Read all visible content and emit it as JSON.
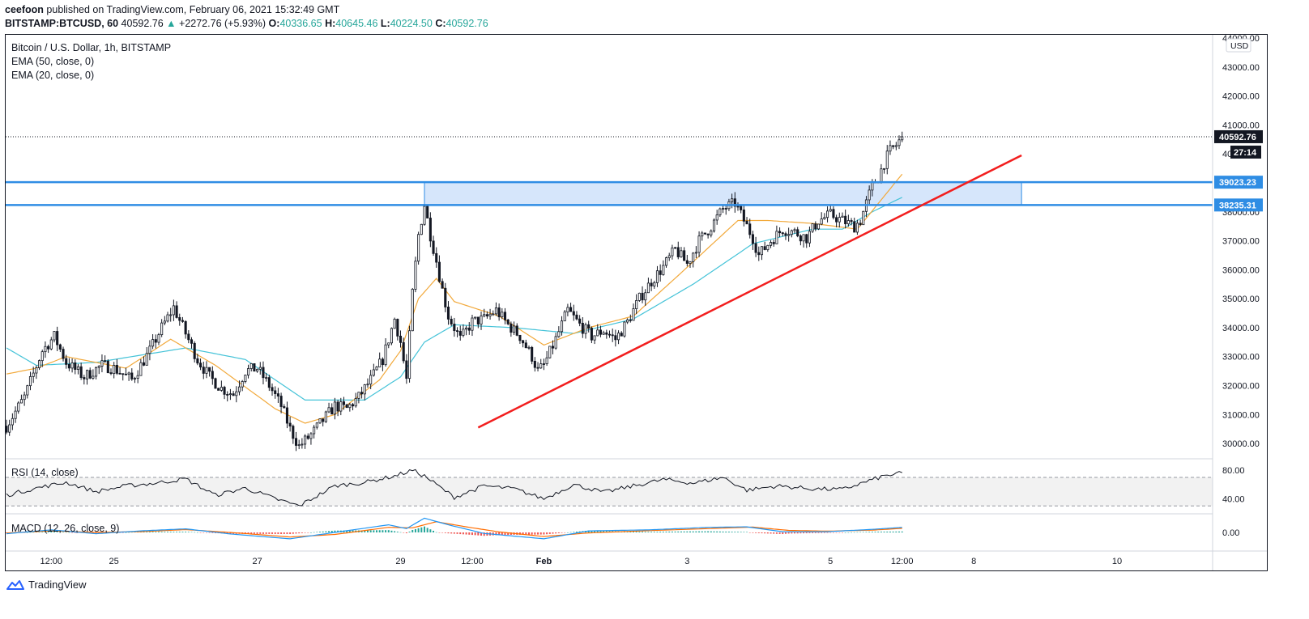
{
  "header": {
    "publisher": "ceefoon",
    "published_text": "published on TradingView.com, February 06, 2021 15:32:49 GMT"
  },
  "ohlc_bar": {
    "symbol": "BITSTAMP:BTCUSD, 60",
    "price": "40592.76",
    "change_arrow": "▲",
    "change": "+2272.76 (+5.93%)",
    "o_label": "O:",
    "o": "40336.65",
    "h_label": "H:",
    "h": "40645.46",
    "l_label": "L:",
    "l": "40224.50",
    "c_label": "C:",
    "c": "40592.76"
  },
  "legend": {
    "title": "Bitcoin / U.S. Dollar, 1h, BITSTAMP",
    "ema50": "EMA (50, close, 0)",
    "ema20": "EMA (20, close, 0)",
    "rsi": "RSI (14, close)",
    "macd": "MACD (12, 26, close, 9)"
  },
  "footer": {
    "brand": "TradingView",
    "logo_icon": "tradingview-logo-icon"
  },
  "colors": {
    "candle": "#131722",
    "ema50": "#45c3d8",
    "ema20": "#f2a93b",
    "trendline": "#f21e1e",
    "level": "#2f8de4",
    "zone": "#d6e6fb",
    "rsi": "#131722",
    "macd": "#2196f3",
    "signal": "#ff6d00",
    "hist_up": "#26a69a",
    "hist_down": "#ef5350"
  },
  "chart_data": [
    {
      "type": "candlestick",
      "title": "Bitcoin / U.S. Dollar, 1h, BITSTAMP",
      "y_axis_unit": "USD",
      "ylim": [
        29500,
        44000
      ],
      "y_ticks": [
        30000,
        31000,
        32000,
        33000,
        34000,
        35000,
        36000,
        37000,
        38000,
        39000,
        40000,
        41000,
        42000,
        43000,
        44000
      ],
      "y_tick_labels": [
        "30000.00",
        "31000.00",
        "32000.00",
        "33000.00",
        "34000.00",
        "35000.00",
        "36000.00",
        "37000.00",
        "38000.00",
        "39000.00",
        "40000.00",
        "41000.00",
        "42000.00",
        "43000.00",
        "44000.00"
      ],
      "x_tick_labels": [
        "12:00",
        "25",
        "27",
        "29",
        "12:00",
        "Feb",
        "3",
        "5",
        "12:00",
        "8",
        "10"
      ],
      "x_tick_index": [
        15,
        36,
        84,
        132,
        156,
        180,
        228,
        276,
        300,
        324,
        372
      ],
      "close_path": [
        [
          0,
          30600
        ],
        [
          6,
          31600
        ],
        [
          12,
          33200
        ],
        [
          16,
          33700
        ],
        [
          20,
          32800
        ],
        [
          26,
          32300
        ],
        [
          32,
          32700
        ],
        [
          36,
          32600
        ],
        [
          42,
          32200
        ],
        [
          48,
          33200
        ],
        [
          52,
          34000
        ],
        [
          56,
          34700
        ],
        [
          60,
          33800
        ],
        [
          64,
          32900
        ],
        [
          68,
          32300
        ],
        [
          72,
          31900
        ],
        [
          76,
          31700
        ],
        [
          80,
          32500
        ],
        [
          84,
          32600
        ],
        [
          88,
          32000
        ],
        [
          92,
          31300
        ],
        [
          95,
          30500
        ],
        [
          98,
          29900
        ],
        [
          102,
          30300
        ],
        [
          106,
          30800
        ],
        [
          110,
          31300
        ],
        [
          114,
          31200
        ],
        [
          118,
          31600
        ],
        [
          122,
          32200
        ],
        [
          126,
          32900
        ],
        [
          128,
          33600
        ],
        [
          130,
          34300
        ],
        [
          132,
          33500
        ],
        [
          134,
          32200
        ],
        [
          136,
          35200
        ],
        [
          138,
          37200
        ],
        [
          140,
          38250
        ],
        [
          142,
          37200
        ],
        [
          144,
          36300
        ],
        [
          146,
          35300
        ],
        [
          148,
          34400
        ],
        [
          152,
          33600
        ],
        [
          156,
          34200
        ],
        [
          160,
          34300
        ],
        [
          164,
          34600
        ],
        [
          168,
          34100
        ],
        [
          172,
          33700
        ],
        [
          176,
          33000
        ],
        [
          178,
          32500
        ],
        [
          180,
          32700
        ],
        [
          184,
          33600
        ],
        [
          188,
          34600
        ],
        [
          192,
          34100
        ],
        [
          196,
          33700
        ],
        [
          200,
          33900
        ],
        [
          204,
          33600
        ],
        [
          208,
          34200
        ],
        [
          212,
          35000
        ],
        [
          216,
          35600
        ],
        [
          220,
          36100
        ],
        [
          224,
          36700
        ],
        [
          228,
          36200
        ],
        [
          232,
          37000
        ],
        [
          236,
          37500
        ],
        [
          240,
          38100
        ],
        [
          244,
          38300
        ],
        [
          248,
          37500
        ],
        [
          250,
          37100
        ],
        [
          252,
          36500
        ],
        [
          256,
          37000
        ],
        [
          260,
          37400
        ],
        [
          264,
          37300
        ],
        [
          268,
          37100
        ],
        [
          272,
          37700
        ],
        [
          276,
          37900
        ],
        [
          280,
          37700
        ],
        [
          284,
          37500
        ],
        [
          286,
          37700
        ],
        [
          288,
          38300
        ],
        [
          290,
          38900
        ],
        [
          292,
          39200
        ],
        [
          294,
          39700
        ],
        [
          296,
          40100
        ],
        [
          298,
          40300
        ],
        [
          300,
          40593
        ]
      ],
      "series": [
        {
          "name": "EMA (50, close, 0)",
          "path": [
            [
              0,
              33300
            ],
            [
              10,
              32700
            ],
            [
              30,
              32800
            ],
            [
              60,
              33300
            ],
            [
              80,
              32900
            ],
            [
              100,
              31500
            ],
            [
              120,
              31500
            ],
            [
              132,
              32300
            ],
            [
              140,
              33500
            ],
            [
              150,
              34100
            ],
            [
              170,
              34000
            ],
            [
              190,
              33800
            ],
            [
              210,
              34300
            ],
            [
              230,
              35500
            ],
            [
              250,
              36900
            ],
            [
              270,
              37400
            ],
            [
              280,
              37400
            ],
            [
              290,
              38000
            ],
            [
              300,
              38500
            ]
          ]
        },
        {
          "name": "EMA (20, close, 0)",
          "path": [
            [
              0,
              32400
            ],
            [
              10,
              32600
            ],
            [
              20,
              33000
            ],
            [
              40,
              32600
            ],
            [
              55,
              33600
            ],
            [
              70,
              32700
            ],
            [
              90,
              31200
            ],
            [
              100,
              30700
            ],
            [
              110,
              31000
            ],
            [
              125,
              32200
            ],
            [
              132,
              33200
            ],
            [
              138,
              35000
            ],
            [
              144,
              35700
            ],
            [
              150,
              34900
            ],
            [
              165,
              34400
            ],
            [
              180,
              33400
            ],
            [
              195,
              34000
            ],
            [
              210,
              34400
            ],
            [
              225,
              35800
            ],
            [
              245,
              37700
            ],
            [
              255,
              37700
            ],
            [
              270,
              37600
            ],
            [
              285,
              37400
            ],
            [
              300,
              39300
            ]
          ]
        }
      ],
      "annotations": [
        {
          "type": "horizontal_line",
          "value": 39023.23,
          "label": "39023.23"
        },
        {
          "type": "horizontal_line",
          "value": 38235.31,
          "label": "38235.31"
        },
        {
          "type": "rectangle_zone",
          "x_from": 140,
          "x_to": 340,
          "y_from": 38235.31,
          "y_to": 39023.23
        },
        {
          "type": "trend_line",
          "from": [
            158,
            30550
          ],
          "to": [
            340,
            39950
          ]
        },
        {
          "type": "last_price",
          "value": 40592.76,
          "label": "40592.76",
          "countdown": "27:14"
        }
      ]
    },
    {
      "type": "line",
      "title": "RSI (14, close)",
      "ylim": [
        20,
        95
      ],
      "y_tick_labels": [
        "80.00",
        "40.00"
      ],
      "band": [
        30,
        70
      ],
      "path": [
        [
          0,
          45
        ],
        [
          10,
          55
        ],
        [
          20,
          63
        ],
        [
          30,
          50
        ],
        [
          40,
          58
        ],
        [
          50,
          62
        ],
        [
          60,
          68
        ],
        [
          70,
          45
        ],
        [
          80,
          55
        ],
        [
          90,
          40
        ],
        [
          98,
          30
        ],
        [
          110,
          58
        ],
        [
          120,
          63
        ],
        [
          130,
          72
        ],
        [
          136,
          80
        ],
        [
          140,
          72
        ],
        [
          150,
          42
        ],
        [
          160,
          58
        ],
        [
          170,
          54
        ],
        [
          180,
          40
        ],
        [
          190,
          60
        ],
        [
          200,
          49
        ],
        [
          210,
          58
        ],
        [
          220,
          67
        ],
        [
          230,
          62
        ],
        [
          240,
          70
        ],
        [
          248,
          52
        ],
        [
          258,
          58
        ],
        [
          270,
          54
        ],
        [
          280,
          53
        ],
        [
          288,
          64
        ],
        [
          294,
          72
        ],
        [
          300,
          76
        ]
      ]
    },
    {
      "type": "line",
      "title": "MACD (12, 26, close, 9)",
      "ylim": [
        -700,
        700
      ],
      "y_tick_labels": [
        "0.00"
      ],
      "macd_path": [
        [
          0,
          -50
        ],
        [
          15,
          100
        ],
        [
          30,
          -50
        ],
        [
          45,
          60
        ],
        [
          60,
          140
        ],
        [
          75,
          -60
        ],
        [
          95,
          -250
        ],
        [
          110,
          0
        ],
        [
          128,
          300
        ],
        [
          134,
          150
        ],
        [
          140,
          560
        ],
        [
          148,
          300
        ],
        [
          160,
          -40
        ],
        [
          180,
          -250
        ],
        [
          195,
          60
        ],
        [
          215,
          100
        ],
        [
          235,
          200
        ],
        [
          248,
          220
        ],
        [
          260,
          30
        ],
        [
          275,
          30
        ],
        [
          290,
          120
        ],
        [
          300,
          200
        ]
      ],
      "signal_path": [
        [
          0,
          -20
        ],
        [
          15,
          60
        ],
        [
          30,
          0
        ],
        [
          45,
          30
        ],
        [
          60,
          110
        ],
        [
          75,
          0
        ],
        [
          95,
          -180
        ],
        [
          110,
          -80
        ],
        [
          128,
          200
        ],
        [
          136,
          180
        ],
        [
          144,
          420
        ],
        [
          155,
          200
        ],
        [
          165,
          20
        ],
        [
          180,
          -160
        ],
        [
          195,
          -20
        ],
        [
          215,
          70
        ],
        [
          235,
          150
        ],
        [
          250,
          210
        ],
        [
          262,
          80
        ],
        [
          275,
          50
        ],
        [
          290,
          90
        ],
        [
          300,
          160
        ]
      ]
    }
  ]
}
